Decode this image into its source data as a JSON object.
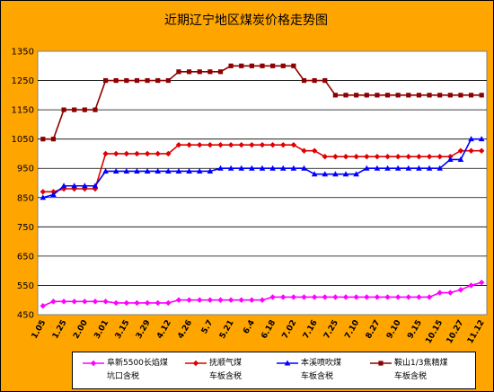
{
  "chart_data": {
    "type": "line",
    "title": "近期辽宁地区煤炭价格走势图",
    "ylim": [
      450,
      1350
    ],
    "yticks": [
      450,
      550,
      650,
      750,
      850,
      950,
      1050,
      1150,
      1250,
      1350
    ],
    "grid": true,
    "legend_position": "bottom",
    "x_tick_labels": [
      {
        "i": 0,
        "label": "1.05"
      },
      {
        "i": 2,
        "label": "1.25"
      },
      {
        "i": 4,
        "label": "2.00"
      },
      {
        "i": 6,
        "label": "3.01"
      },
      {
        "i": 8,
        "label": "3.15"
      },
      {
        "i": 10,
        "label": "3.29"
      },
      {
        "i": 12,
        "label": "4.12"
      },
      {
        "i": 14,
        "label": "4.26"
      },
      {
        "i": 16,
        "label": "5.7"
      },
      {
        "i": 18,
        "label": "5.21"
      },
      {
        "i": 20,
        "label": "6.4"
      },
      {
        "i": 22,
        "label": "6.18"
      },
      {
        "i": 24,
        "label": "7.02"
      },
      {
        "i": 26,
        "label": "7.16"
      },
      {
        "i": 28,
        "label": "7.25"
      },
      {
        "i": 30,
        "label": "7.10"
      },
      {
        "i": 32,
        "label": "8.27"
      },
      {
        "i": 34,
        "label": "9.10"
      },
      {
        "i": 36,
        "label": "9.15"
      },
      {
        "i": 38,
        "label": "10.15"
      },
      {
        "i": 40,
        "label": "10.27"
      },
      {
        "i": 42,
        "label": "11.12"
      }
    ],
    "series": [
      {
        "name": "阜新5500长焰煤\n坑口含税",
        "color": "#ff00ff",
        "marker": "diamond",
        "values": [
          480,
          495,
          495,
          495,
          495,
          495,
          495,
          490,
          490,
          490,
          490,
          490,
          490,
          500,
          500,
          500,
          500,
          500,
          500,
          500,
          500,
          500,
          510,
          510,
          510,
          510,
          510,
          510,
          510,
          510,
          510,
          510,
          510,
          510,
          510,
          510,
          510,
          510,
          525,
          525,
          535,
          550,
          560
        ]
      },
      {
        "name": "抚顺气煤\n车板含税",
        "color": "#e00000",
        "marker": "diamond",
        "values": [
          870,
          870,
          880,
          880,
          880,
          880,
          1000,
          1000,
          1000,
          1000,
          1000,
          1000,
          1000,
          1030,
          1030,
          1030,
          1030,
          1030,
          1030,
          1030,
          1030,
          1030,
          1030,
          1030,
          1030,
          1010,
          1010,
          990,
          990,
          990,
          990,
          990,
          990,
          990,
          990,
          990,
          990,
          990,
          990,
          990,
          1010,
          1010,
          1010
        ]
      },
      {
        "name": "本溪喷吹煤\n车板含税",
        "color": "#0000ff",
        "marker": "triangle",
        "values": [
          850,
          860,
          890,
          890,
          890,
          890,
          940,
          940,
          940,
          940,
          940,
          940,
          940,
          940,
          940,
          940,
          940,
          950,
          950,
          950,
          950,
          950,
          950,
          950,
          950,
          950,
          930,
          930,
          930,
          930,
          930,
          950,
          950,
          950,
          950,
          950,
          950,
          950,
          950,
          980,
          980,
          1050,
          1050
        ]
      },
      {
        "name": "鞍山1/3焦精煤\n车板含税",
        "color": "#8b0000",
        "marker": "square",
        "values": [
          1050,
          1050,
          1150,
          1150,
          1150,
          1150,
          1250,
          1250,
          1250,
          1250,
          1250,
          1250,
          1250,
          1280,
          1280,
          1280,
          1280,
          1280,
          1300,
          1300,
          1300,
          1300,
          1300,
          1300,
          1300,
          1250,
          1250,
          1250,
          1200,
          1200,
          1200,
          1200,
          1200,
          1200,
          1200,
          1200,
          1200,
          1200,
          1200,
          1200,
          1200,
          1200,
          1200
        ]
      }
    ]
  }
}
